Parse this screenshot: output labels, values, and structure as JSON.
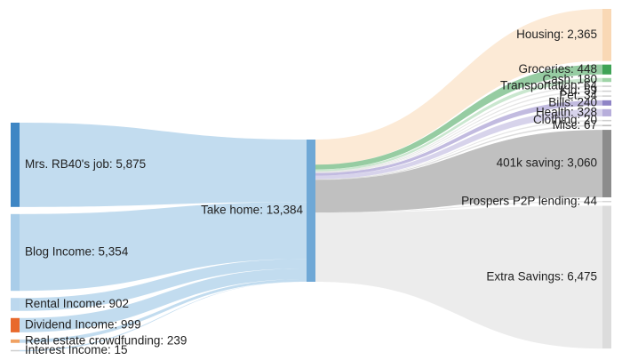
{
  "chart_data": {
    "type": "sankey",
    "title": "",
    "center": {
      "label": "Take home: 13,384",
      "value": 13384,
      "color": "#6fa8d6"
    },
    "sources": [
      {
        "label": "Mrs. RB40's job: 5,875",
        "value": 5875,
        "color": "#3e86c4"
      },
      {
        "label": "Blog Income: 5,354",
        "value": 5354,
        "color": "#a9cde9"
      },
      {
        "label": "Rental Income: 902",
        "value": 902,
        "color": "#bcd8ee"
      },
      {
        "label": "Dividend Income: 999",
        "value": 999,
        "color": "#e8692c"
      },
      {
        "label": "Real estate crowdfunding: 239",
        "value": 239,
        "color": "#f0a162"
      },
      {
        "label": "Interest Income: 15",
        "value": 15,
        "color": "#cfcfcf"
      }
    ],
    "targets": [
      {
        "label": "Housing: 2,365",
        "value": 2365,
        "color": "#f9d8b5"
      },
      {
        "label": "Groceries: 448",
        "value": 448,
        "color": "#3fa356"
      },
      {
        "label": "Cash: 180",
        "value": 180,
        "color": "#9fd4a7"
      },
      {
        "label": "Transportation: 64",
        "value": 64,
        "color": "#cfcfcf"
      },
      {
        "label": "Kid: 59",
        "value": 59,
        "color": "#cfcfcf"
      },
      {
        "label": "Pet: 34",
        "value": 34,
        "color": "#cfcfcf"
      },
      {
        "label": "Bills: 240",
        "value": 240,
        "color": "#8f84c6"
      },
      {
        "label": "Health: 328",
        "value": 328,
        "color": "#b7aedb"
      },
      {
        "label": "Clothing: 20",
        "value": 20,
        "color": "#cfcfcf"
      },
      {
        "label": "Misc: 67",
        "value": 67,
        "color": "#bdbdbd"
      },
      {
        "label": "401k saving: 3,060",
        "value": 3060,
        "color": "#8c8c8c"
      },
      {
        "label": "Prospers P2P lending: 44",
        "value": 44,
        "color": "#d6d6d6"
      },
      {
        "label": "Extra Savings: 6,475",
        "value": 6475,
        "color": "#dcdcdc"
      }
    ]
  }
}
